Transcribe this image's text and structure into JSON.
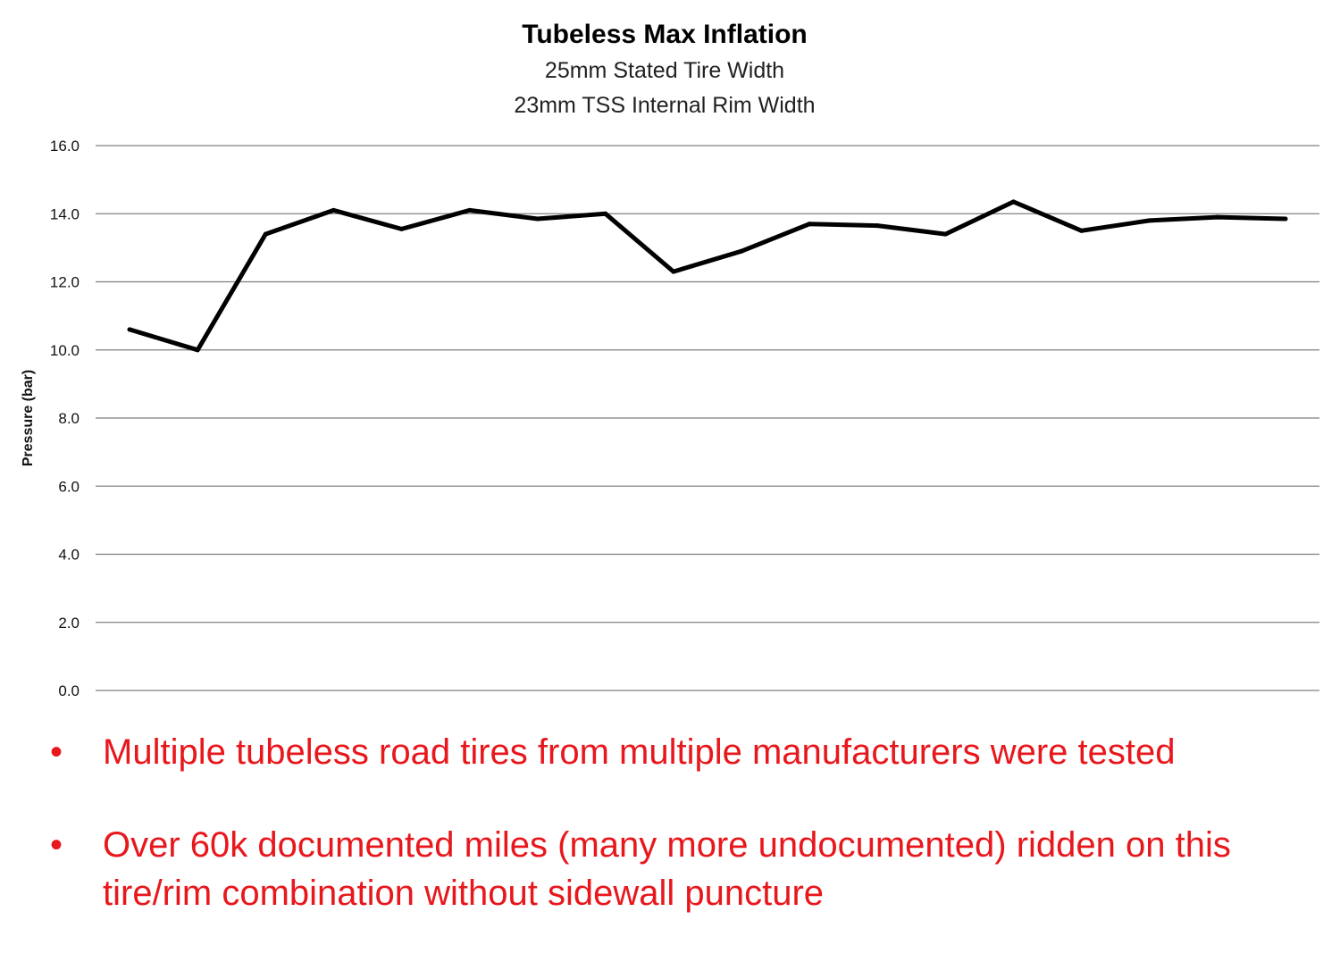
{
  "chart_data": {
    "type": "line",
    "title": "Tubeless Max Inflation",
    "subtitle_lines": [
      "25mm Stated Tire Width",
      "23mm TSS Internal Rim Width"
    ],
    "xlabel": "",
    "ylabel": "Pressure (bar)",
    "ylim": [
      0,
      16
    ],
    "y_ticks": [
      "0.0",
      "2.0",
      "4.0",
      "6.0",
      "8.0",
      "10.0",
      "12.0",
      "14.0",
      "16.0"
    ],
    "grid": true,
    "legend": "none",
    "series": [
      {
        "color": "#000000",
        "values": [
          10.6,
          10.0,
          13.4,
          14.1,
          13.55,
          14.1,
          13.85,
          14.0,
          12.3,
          12.9,
          13.7,
          13.65,
          13.4,
          14.35,
          13.5,
          13.8,
          13.9,
          13.85
        ]
      }
    ]
  },
  "bullets": [
    {
      "marker": "•",
      "text": "Multiple tubeless road tires from multiple manufacturers were tested"
    },
    {
      "marker": "•",
      "text": "Over 60k documented miles (many more undocumented) ridden on this tire/rim combination without sidewall puncture"
    }
  ],
  "colors": {
    "bullet_text": "#e8171c",
    "series": "#000000",
    "grid": "#7f7f7f"
  }
}
